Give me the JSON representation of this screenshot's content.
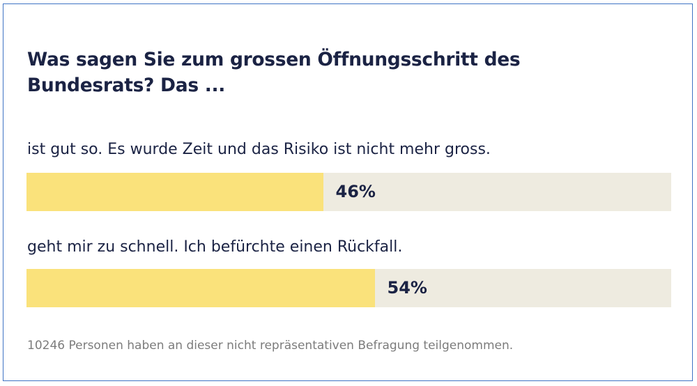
{
  "chart_data": {
    "type": "bar",
    "title": "Was sagen Sie zum grossen Öffnungsschritt des Bundesrats? Das ...",
    "categories": [
      "ist gut so. Es wurde Zeit und das Risiko ist nicht mehr gross.",
      "geht mir zu schnell. Ich befürchte einen Rückfall."
    ],
    "values": [
      46,
      54
    ],
    "value_labels": [
      "46%",
      "54%"
    ],
    "unit": "%",
    "ylim": [
      0,
      100
    ],
    "orientation": "horizontal",
    "colors": {
      "fill": "#fae27b",
      "track": "#eeebe0",
      "text": "#1b2344"
    },
    "note": "10246 Personen haben an dieser nicht repräsentativen Befragung teilgenommen."
  }
}
